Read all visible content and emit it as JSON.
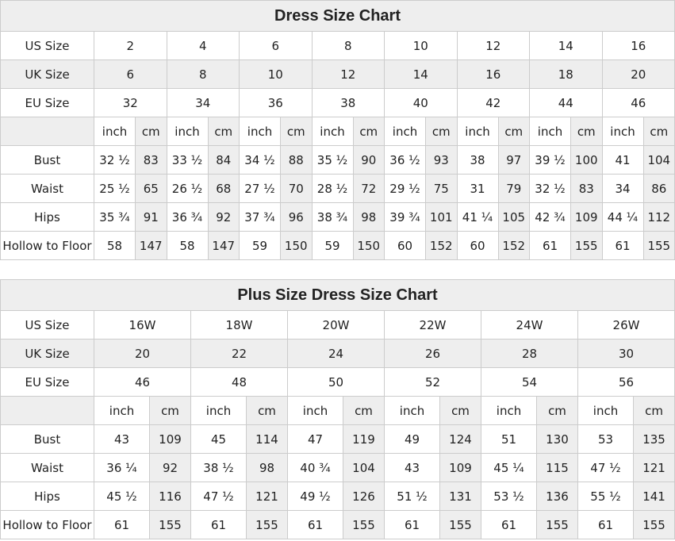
{
  "tables": [
    {
      "title": "Dress Size Chart",
      "rows": [
        {
          "label": "US Size",
          "cells": [
            "2",
            "4",
            "6",
            "8",
            "10",
            "12",
            "14",
            "16"
          ]
        },
        {
          "label": "UK Size",
          "cells": [
            "6",
            "8",
            "10",
            "12",
            "14",
            "16",
            "18",
            "20"
          ]
        },
        {
          "label": "EU Size",
          "cells": [
            "32",
            "34",
            "36",
            "38",
            "40",
            "42",
            "44",
            "46"
          ]
        },
        {
          "cells": [
            "inch",
            "cm",
            "inch",
            "cm",
            "inch",
            "cm",
            "inch",
            "cm",
            "inch",
            "cm",
            "inch",
            "cm",
            "inch",
            "cm",
            "inch",
            "cm"
          ]
        },
        {
          "label": "Bust",
          "cells": [
            "32 ½",
            "83",
            "33 ½",
            "84",
            "34 ½",
            "88",
            "35 ½",
            "90",
            "36 ½",
            "93",
            "38",
            "97",
            "39 ½",
            "100",
            "41",
            "104"
          ]
        },
        {
          "label": "Waist",
          "cells": [
            "25 ½",
            "65",
            "26 ½",
            "68",
            "27 ½",
            "70",
            "28 ½",
            "72",
            "29 ½",
            "75",
            "31",
            "79",
            "32 ½",
            "83",
            "34",
            "86"
          ]
        },
        {
          "label": "Hips",
          "cells": [
            "35 ¾",
            "91",
            "36 ¾",
            "92",
            "37 ¾",
            "96",
            "38 ¾",
            "98",
            "39 ¾",
            "101",
            "41 ¼",
            "105",
            "42 ¾",
            "109",
            "44 ¼",
            "112"
          ]
        },
        {
          "label": "Hollow to Floor",
          "cells": [
            "58",
            "147",
            "58",
            "147",
            "59",
            "150",
            "59",
            "150",
            "60",
            "152",
            "60",
            "152",
            "61",
            "155",
            "61",
            "155"
          ]
        }
      ]
    },
    {
      "title": "Plus Size Dress Size Chart",
      "rows": [
        {
          "label": "US Size",
          "cells": [
            "16W",
            "18W",
            "20W",
            "22W",
            "24W",
            "26W"
          ]
        },
        {
          "label": "UK Size",
          "cells": [
            "20",
            "22",
            "24",
            "26",
            "28",
            "30"
          ]
        },
        {
          "label": "EU Size",
          "cells": [
            "46",
            "48",
            "50",
            "52",
            "54",
            "56"
          ]
        },
        {
          "cells": [
            "inch",
            "cm",
            "inch",
            "cm",
            "inch",
            "cm",
            "inch",
            "cm",
            "inch",
            "cm",
            "inch",
            "cm"
          ]
        },
        {
          "label": "Bust",
          "cells": [
            "43",
            "109",
            "45",
            "114",
            "47",
            "119",
            "49",
            "124",
            "51",
            "130",
            "53",
            "135"
          ]
        },
        {
          "label": "Waist",
          "cells": [
            "36 ¼",
            "92",
            "38 ½",
            "98",
            "40 ¾",
            "104",
            "43",
            "109",
            "45 ¼",
            "115",
            "47 ½",
            "121"
          ]
        },
        {
          "label": "Hips",
          "cells": [
            "45 ½",
            "116",
            "47 ½",
            "121",
            "49 ½",
            "126",
            "51 ½",
            "131",
            "53 ½",
            "136",
            "55 ½",
            "141"
          ]
        },
        {
          "label": "Hollow to Floor",
          "cells": [
            "61",
            "155",
            "61",
            "155",
            "61",
            "155",
            "61",
            "155",
            "61",
            "155",
            "61",
            "155"
          ]
        }
      ]
    }
  ]
}
